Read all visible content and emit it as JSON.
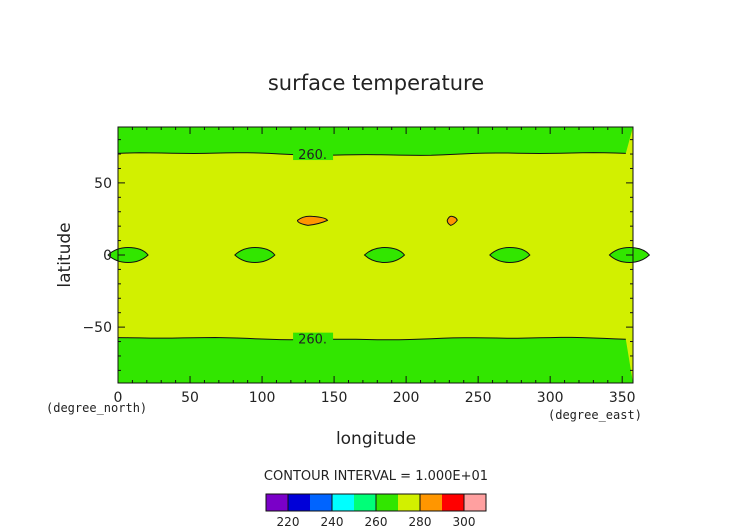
{
  "chart_data": {
    "type": "heatmap",
    "title": "surface temperature",
    "xlabel": "longitude",
    "ylabel": "latitude",
    "x_unit": "(degree_east)",
    "y_unit": "(degree_north)",
    "xlim": [
      0,
      357.5
    ],
    "ylim": [
      -88.75,
      88.75
    ],
    "x_ticks": [
      0,
      50,
      100,
      150,
      200,
      250,
      300,
      350
    ],
    "y_ticks": [
      -50,
      0,
      50
    ],
    "background_level": 270,
    "contours": [
      {
        "label": "260.",
        "lat": 70,
        "label_lon": 125
      },
      {
        "label": "260.",
        "lat": -58,
        "label_lon": 125
      }
    ],
    "cold_bands_level": 260,
    "cold_patches_lon": [
      7,
      95,
      185,
      272,
      355
    ],
    "cold_patch_lat": 0,
    "warm_spots": [
      {
        "lon": 135,
        "lat": 24,
        "level": 280
      },
      {
        "lon": 232,
        "lat": 24,
        "level": 280
      }
    ],
    "contour_interval_text": "CONTOUR INTERVAL = 1.000E+01",
    "colorbar": {
      "colors": [
        "#7a00c8",
        "#0000d8",
        "#0064ff",
        "#00ffff",
        "#00ff78",
        "#32e600",
        "#d2f000",
        "#ff9600",
        "#ff0000",
        "#ffa0a0"
      ],
      "tick_labels": [
        "220",
        "240",
        "260",
        "280",
        "300"
      ]
    }
  }
}
